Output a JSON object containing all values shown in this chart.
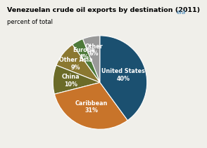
{
  "title": "Venezuelan crude oil exports by destination (2011)",
  "subtitle": "percent of total",
  "slices": [
    {
      "label": "United States\n40%",
      "value": 40,
      "color": "#1b5070"
    },
    {
      "label": "Caribbean\n31%",
      "value": 31,
      "color": "#c8742a"
    },
    {
      "label": "China\n10%",
      "value": 10,
      "color": "#6b6b28"
    },
    {
      "label": "Other Asia\n9%",
      "value": 9,
      "color": "#8b7830"
    },
    {
      "label": "Europe\n4%",
      "value": 4,
      "color": "#4e7a3a"
    },
    {
      "label": "Other\n6%",
      "value": 6,
      "color": "#999999"
    }
  ],
  "bg_color": "#f0efea",
  "title_fontsize": 6.8,
  "subtitle_fontsize": 6.0,
  "label_fontsize": 5.8,
  "label_color": "white",
  "edge_color": "white",
  "edge_width": 0.8
}
